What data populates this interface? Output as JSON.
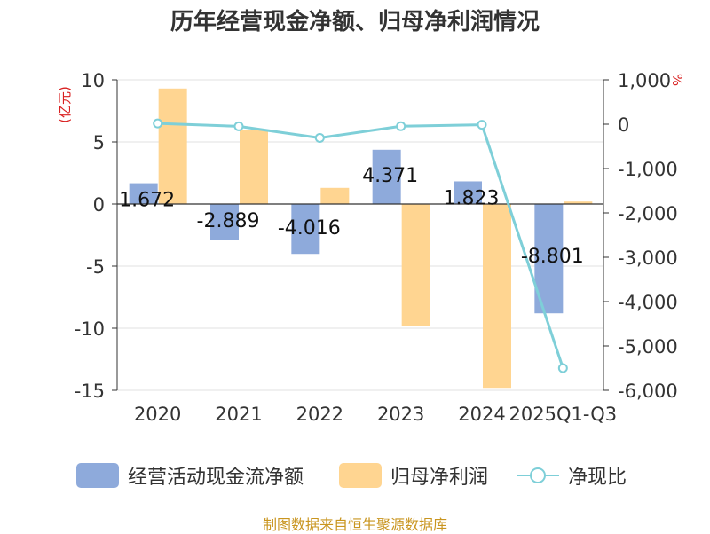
{
  "title": "历年经营现金净额、归母净利润情况",
  "footer": "制图数据来自恒生聚源数据库",
  "legend": {
    "ocf": "经营活动现金流净额",
    "np": "归母净利润",
    "ratio": "净现比"
  },
  "colors": {
    "ocf": "#8eaadb",
    "np": "#ffd591",
    "ratio": "#7ecfd8",
    "axis_unit": "#d92020",
    "footer": "#c9951f"
  },
  "chart_data": {
    "type": "bar",
    "title": "历年经营现金净额、归母净利润情况",
    "categories": [
      "2020",
      "2021",
      "2022",
      "2023",
      "2024",
      "2025Q1-Q3"
    ],
    "left_axis": {
      "unit_label": "(亿元)",
      "ylim": [
        -15,
        10
      ],
      "ticks": [
        10,
        5,
        0,
        -5,
        -10,
        -15
      ],
      "tick_labels": [
        "10",
        "5",
        "0",
        "-5",
        "-10",
        "-15"
      ]
    },
    "right_axis": {
      "unit_label": "%",
      "ylim": [
        -6000,
        1000
      ],
      "ticks": [
        1000,
        0,
        -1000,
        -2000,
        -3000,
        -4000,
        -5000,
        -6000
      ],
      "tick_labels": [
        "1,000",
        "0",
        "-1,000",
        "-2,000",
        "-3,000",
        "-4,000",
        "-5,000",
        "-6,000"
      ]
    },
    "grid": true,
    "series": [
      {
        "name": "经营活动现金流净额",
        "type": "bar",
        "axis": "left",
        "values": [
          1.672,
          -2.889,
          -4.016,
          4.371,
          1.823,
          -8.801
        ],
        "labels": [
          "1.672",
          "-2.889",
          "-4.016",
          "4.371",
          "1.823",
          "-8.801"
        ]
      },
      {
        "name": "归母净利润",
        "type": "bar",
        "axis": "left",
        "values": [
          9.3,
          6.0,
          1.3,
          -9.8,
          -14.8,
          0.2
        ]
      },
      {
        "name": "净现比",
        "type": "line",
        "axis": "right",
        "values": [
          18,
          -48,
          -309,
          -45,
          -12,
          -5500
        ]
      }
    ],
    "legend_position": "bottom"
  }
}
